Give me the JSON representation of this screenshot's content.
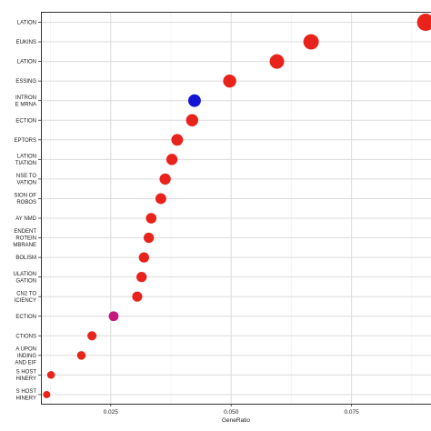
{
  "chart_data": {
    "type": "scatter",
    "xlabel": "GeneRatio",
    "ylabel": "",
    "xlim": [
      0.0105,
      0.0915
    ],
    "x_ticks": [
      "0.025",
      "0.050",
      "0.075"
    ],
    "x_tick_values": [
      0.025,
      0.05,
      0.075
    ],
    "grid": true,
    "legend": "none",
    "categories": [
      [
        "LATION"
      ],
      [
        "EUKINS"
      ],
      [
        "LATION"
      ],
      [
        "ESSING"
      ],
      [
        "INTRON",
        "E MRNA"
      ],
      [
        "ECTION"
      ],
      [
        "EPTORS"
      ],
      [
        "LATION",
        "TIATION"
      ],
      [
        "NSE TO",
        "VATION"
      ],
      [
        "SION OF",
        "ROBOS"
      ],
      [
        "AY NMD"
      ],
      [
        "ENDENT",
        "ROTEIN",
        "MBRANE"
      ],
      [
        "BOLISM"
      ],
      [
        "ULATION",
        "GATION"
      ],
      [
        "CN2 TO",
        "ICIENCY"
      ],
      [
        "ECTION"
      ],
      [
        "CTIONS"
      ],
      [
        "A UPON",
        "INDING",
        "AND EIF"
      ],
      [
        "S HOST",
        "HINERY"
      ],
      [
        "S HOST",
        "HINERY"
      ]
    ],
    "points": [
      {
        "x": 0.0904,
        "size": 3.0,
        "color": "#e8231c"
      },
      {
        "x": 0.0666,
        "size": 2.6,
        "color": "#e8231c"
      },
      {
        "x": 0.0595,
        "size": 2.4,
        "color": "#e8231c"
      },
      {
        "x": 0.0497,
        "size": 2.1,
        "color": "#e8231c"
      },
      {
        "x": 0.0424,
        "size": 2.0,
        "color": "#1414d4"
      },
      {
        "x": 0.0419,
        "size": 1.9,
        "color": "#e8231c"
      },
      {
        "x": 0.0388,
        "size": 1.8,
        "color": "#e8231c"
      },
      {
        "x": 0.0377,
        "size": 1.7,
        "color": "#e8231c"
      },
      {
        "x": 0.0363,
        "size": 1.7,
        "color": "#e8231c"
      },
      {
        "x": 0.0354,
        "size": 1.6,
        "color": "#e8231c"
      },
      {
        "x": 0.0334,
        "size": 1.55,
        "color": "#e8231c"
      },
      {
        "x": 0.0329,
        "size": 1.5,
        "color": "#e8231c"
      },
      {
        "x": 0.0319,
        "size": 1.5,
        "color": "#e8231c"
      },
      {
        "x": 0.0314,
        "size": 1.5,
        "color": "#e8231c"
      },
      {
        "x": 0.0305,
        "size": 1.45,
        "color": "#e8231c"
      },
      {
        "x": 0.0256,
        "size": 1.4,
        "color": "#c4167d"
      },
      {
        "x": 0.0211,
        "size": 1.25,
        "color": "#e8231c"
      },
      {
        "x": 0.0189,
        "size": 1.15,
        "color": "#e8231c"
      },
      {
        "x": 0.0126,
        "size": 0.95,
        "color": "#e8231c"
      },
      {
        "x": 0.0117,
        "size": 0.85,
        "color": "#e8231c"
      }
    ]
  }
}
